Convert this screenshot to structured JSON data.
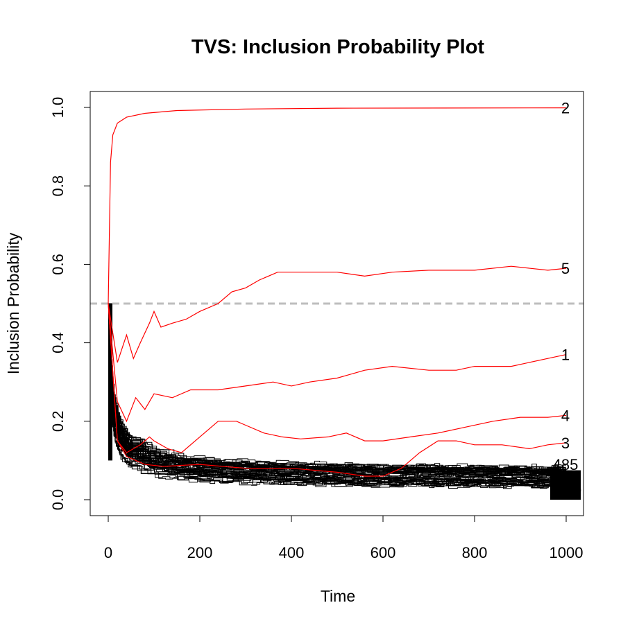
{
  "chart_data": {
    "type": "line",
    "title": "TVS: Inclusion Probability Plot",
    "xlabel": "Time",
    "ylabel": "Inclusion Probability",
    "xlim": [
      0,
      1000
    ],
    "ylim": [
      0,
      1.0
    ],
    "x_ticks": [
      "0",
      "200",
      "400",
      "600",
      "800",
      "1000"
    ],
    "y_ticks": [
      "0.0",
      "0.2",
      "0.4",
      "0.6",
      "0.8",
      "1.0"
    ],
    "threshold": {
      "value": 0.5,
      "style": "dashed",
      "color": "#bebebe"
    },
    "highlight_color": "#ff0000",
    "background_color": "#000000",
    "series": [
      {
        "name": "2",
        "x": [
          0,
          5,
          10,
          20,
          40,
          80,
          150,
          300,
          500,
          1000
        ],
        "values": [
          0.5,
          0.86,
          0.93,
          0.96,
          0.975,
          0.985,
          0.992,
          0.996,
          0.998,
          0.999
        ]
      },
      {
        "name": "5",
        "x": [
          0,
          20,
          40,
          55,
          70,
          90,
          100,
          115,
          140,
          170,
          200,
          240,
          270,
          300,
          330,
          370,
          420,
          500,
          560,
          620,
          700,
          800,
          880,
          960,
          1000
        ],
        "values": [
          0.5,
          0.35,
          0.42,
          0.36,
          0.4,
          0.45,
          0.48,
          0.44,
          0.45,
          0.46,
          0.48,
          0.5,
          0.53,
          0.54,
          0.56,
          0.58,
          0.58,
          0.58,
          0.57,
          0.58,
          0.585,
          0.585,
          0.595,
          0.585,
          0.59
        ]
      },
      {
        "name": "1",
        "x": [
          0,
          20,
          40,
          60,
          80,
          100,
          140,
          180,
          240,
          300,
          360,
          400,
          440,
          500,
          560,
          620,
          700,
          760,
          800,
          880,
          960,
          1000
        ],
        "values": [
          0.5,
          0.25,
          0.2,
          0.26,
          0.23,
          0.27,
          0.26,
          0.28,
          0.28,
          0.29,
          0.3,
          0.29,
          0.3,
          0.31,
          0.33,
          0.34,
          0.33,
          0.33,
          0.34,
          0.34,
          0.36,
          0.37
        ]
      },
      {
        "name": "4",
        "x": [
          0,
          20,
          40,
          70,
          90,
          100,
          130,
          160,
          200,
          240,
          280,
          300,
          340,
          380,
          420,
          480,
          520,
          560,
          600,
          660,
          720,
          780,
          840,
          900,
          960,
          1000
        ],
        "values": [
          0.5,
          0.15,
          0.12,
          0.14,
          0.16,
          0.15,
          0.13,
          0.12,
          0.16,
          0.2,
          0.2,
          0.19,
          0.17,
          0.16,
          0.155,
          0.16,
          0.17,
          0.15,
          0.15,
          0.16,
          0.17,
          0.185,
          0.2,
          0.21,
          0.21,
          0.215
        ]
      },
      {
        "name": "3",
        "x": [
          0,
          20,
          40,
          80,
          120,
          200,
          300,
          400,
          500,
          560,
          600,
          640,
          680,
          720,
          760,
          800,
          860,
          920,
          960,
          1000
        ],
        "values": [
          0.5,
          0.15,
          0.11,
          0.09,
          0.085,
          0.09,
          0.08,
          0.08,
          0.07,
          0.06,
          0.06,
          0.08,
          0.12,
          0.15,
          0.15,
          0.14,
          0.14,
          0.13,
          0.14,
          0.145
        ]
      }
    ],
    "background_series_summary": {
      "description": "many black lines decaying from ~0.5 near time 0 to ~0.03-0.08 by time 1000"
    },
    "end_labels": [
      "2",
      "5",
      "1",
      "4",
      "3",
      "485",
      "0"
    ]
  }
}
